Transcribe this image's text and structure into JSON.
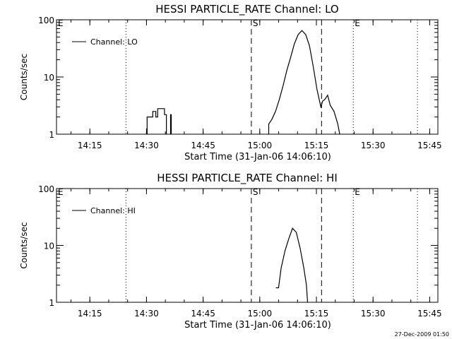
{
  "footer_timestamp": "27-Dec-2009 01:50",
  "chart_data": [
    {
      "type": "line",
      "title": "HESSI PARTICLE_RATE Channel: LO",
      "xlabel": "Start Time (31-Jan-06 14:06:10)",
      "ylabel": "Counts/sec",
      "y_scale": "log",
      "ylim": [
        1,
        100
      ],
      "xlim_minutes": [
        0,
        101
      ],
      "yticks": [
        {
          "v": 1,
          "label": "1"
        },
        {
          "v": 10,
          "label": "10"
        },
        {
          "v": 100,
          "label": "100"
        }
      ],
      "xticks": [
        {
          "m": 8.833,
          "label": "14:15"
        },
        {
          "m": 23.833,
          "label": "14:30"
        },
        {
          "m": 38.833,
          "label": "14:45"
        },
        {
          "m": 53.833,
          "label": "15:00"
        },
        {
          "m": 68.833,
          "label": "15:15"
        },
        {
          "m": 83.833,
          "label": "15:30"
        },
        {
          "m": 98.833,
          "label": "15:45"
        }
      ],
      "legend": {
        "label": "Channel: LO",
        "position": "top-left"
      },
      "markers": [
        {
          "m": 0.0,
          "style": "dotted",
          "label": "E"
        },
        {
          "m": 18.4,
          "style": "dotted",
          "label": ""
        },
        {
          "m": 51.6,
          "style": "dashed",
          "label": "S"
        },
        {
          "m": 70.2,
          "style": "dashed",
          "label": ""
        },
        {
          "m": 78.6,
          "style": "dotted",
          "label": "E"
        },
        {
          "m": 95.6,
          "style": "dotted",
          "label": ""
        }
      ],
      "series": [
        {
          "name": "Channel: LO",
          "segments": [
            [
              [
                24.0,
                1
              ],
              [
                24.0,
                2.0
              ],
              [
                25.5,
                2.0
              ],
              [
                25.5,
                2.5
              ],
              [
                26.3,
                2.5
              ],
              [
                26.3,
                2.0
              ],
              [
                26.8,
                2.0
              ],
              [
                26.8,
                2.8
              ],
              [
                28.6,
                2.8
              ],
              [
                28.6,
                2.2
              ],
              [
                29.1,
                2.2
              ],
              [
                29.1,
                1
              ]
            ],
            [
              [
                30.2,
                1
              ],
              [
                30.2,
                2.2
              ],
              [
                30.4,
                2.2
              ],
              [
                30.4,
                1
              ]
            ],
            [
              [
                56.2,
                1
              ],
              [
                56.2,
                1.5
              ],
              [
                57.0,
                1.8
              ],
              [
                58.0,
                2.5
              ],
              [
                59.0,
                4
              ],
              [
                60.0,
                7
              ],
              [
                61.0,
                13
              ],
              [
                62.0,
                22
              ],
              [
                63.0,
                38
              ],
              [
                64.0,
                55
              ],
              [
                65.0,
                65
              ],
              [
                66.0,
                55
              ],
              [
                67.0,
                35
              ],
              [
                68.0,
                15
              ],
              [
                69.0,
                6
              ],
              [
                70.0,
                3.0
              ],
              [
                70.5,
                3.8
              ],
              [
                71.0,
                4.0
              ],
              [
                71.8,
                4.8
              ],
              [
                72.5,
                3.2
              ],
              [
                73.5,
                2.5
              ],
              [
                74.5,
                1.5
              ],
              [
                75.0,
                1
              ]
            ]
          ]
        }
      ]
    },
    {
      "type": "line",
      "title": "HESSI PARTICLE_RATE Channel: HI",
      "xlabel": "Start Time (31-Jan-06 14:06:10)",
      "ylabel": "Counts/sec",
      "y_scale": "log",
      "ylim": [
        1,
        100
      ],
      "xlim_minutes": [
        0,
        101
      ],
      "yticks": [
        {
          "v": 1,
          "label": "1"
        },
        {
          "v": 10,
          "label": "10"
        },
        {
          "v": 100,
          "label": "100"
        }
      ],
      "xticks": [
        {
          "m": 8.833,
          "label": "14:15"
        },
        {
          "m": 23.833,
          "label": "14:30"
        },
        {
          "m": 38.833,
          "label": "14:45"
        },
        {
          "m": 53.833,
          "label": "15:00"
        },
        {
          "m": 68.833,
          "label": "15:15"
        },
        {
          "m": 83.833,
          "label": "15:30"
        },
        {
          "m": 98.833,
          "label": "15:45"
        }
      ],
      "legend": {
        "label": "Channel: HI",
        "position": "top-left"
      },
      "markers": [
        {
          "m": 0.0,
          "style": "dotted",
          "label": "E"
        },
        {
          "m": 18.4,
          "style": "dotted",
          "label": ""
        },
        {
          "m": 51.6,
          "style": "dashed",
          "label": "S"
        },
        {
          "m": 70.2,
          "style": "dashed",
          "label": ""
        },
        {
          "m": 78.6,
          "style": "dotted",
          "label": "E"
        },
        {
          "m": 95.6,
          "style": "dotted",
          "label": ""
        }
      ],
      "series": [
        {
          "name": "Channel: HI",
          "segments": [
            [
              [
                58.1,
                1.8
              ],
              [
                58.8,
                1.8
              ],
              [
                59.5,
                4
              ],
              [
                60.5,
                8
              ],
              [
                61.5,
                13
              ],
              [
                62.5,
                20
              ],
              [
                63.5,
                17
              ],
              [
                64.5,
                9
              ],
              [
                65.5,
                4
              ],
              [
                66.2,
                2.0
              ],
              [
                66.5,
                1
              ]
            ]
          ]
        }
      ]
    }
  ]
}
